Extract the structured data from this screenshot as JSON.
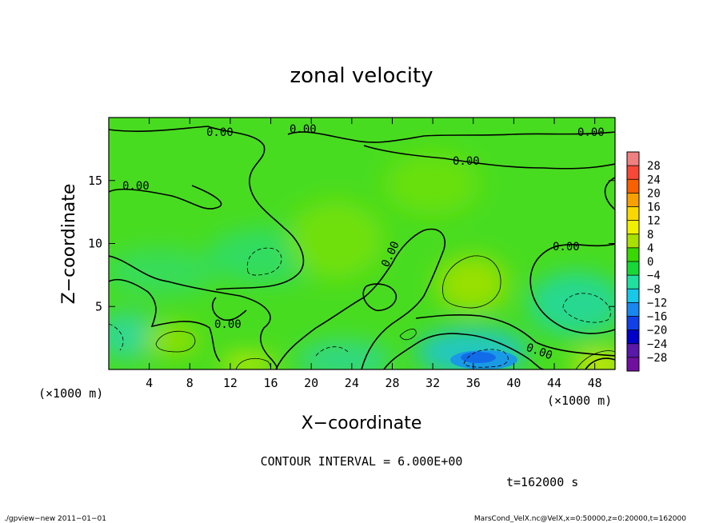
{
  "chart_data": {
    "type": "heatmap",
    "title": "zonal velocity",
    "xlabel": "X−coordinate",
    "ylabel": "Z−coordinate",
    "x_unit": "(×1000 m)",
    "y_unit": "(×1000 m)",
    "xlim": [
      0,
      50
    ],
    "ylim": [
      0,
      20
    ],
    "x_ticks": [
      "4",
      "8",
      "12",
      "16",
      "20",
      "24",
      "28",
      "32",
      "36",
      "40",
      "44",
      "48"
    ],
    "y_ticks": [
      "5",
      "10",
      "15"
    ],
    "x_tick_values": [
      4,
      8,
      12,
      16,
      20,
      24,
      28,
      32,
      36,
      40,
      44,
      48
    ],
    "y_tick_values": [
      5,
      10,
      15
    ],
    "colorbar": {
      "labels": [
        "28",
        "24",
        "20",
        "16",
        "12",
        "8",
        "4",
        "0",
        "−4",
        "−8",
        "−12",
        "−16",
        "−20",
        "−24",
        "−28"
      ],
      "colors": [
        "#f08080",
        "#f84838",
        "#f86000",
        "#f8a000",
        "#f8d800",
        "#f0f000",
        "#a8e000",
        "#38d800",
        "#18d838",
        "#20e0a0",
        "#18c8e8",
        "#1888f0",
        "#1040e8",
        "#0000c8",
        "#5818a8",
        "#7010a0"
      ]
    },
    "contour_labels": [
      "0.00",
      "0.00",
      "0.00",
      "0.00",
      "0.00",
      "0.00",
      "0.00",
      "0.00"
    ],
    "contour_interval": "CONTOUR INTERVAL = 6.000E+00",
    "time": "t=162000 s"
  },
  "footer": {
    "left": "./gpview−new  2011−01−01",
    "right": "MarsCond_VelX.nc@VelX,x=0:50000,z=0:20000,t=162000"
  }
}
